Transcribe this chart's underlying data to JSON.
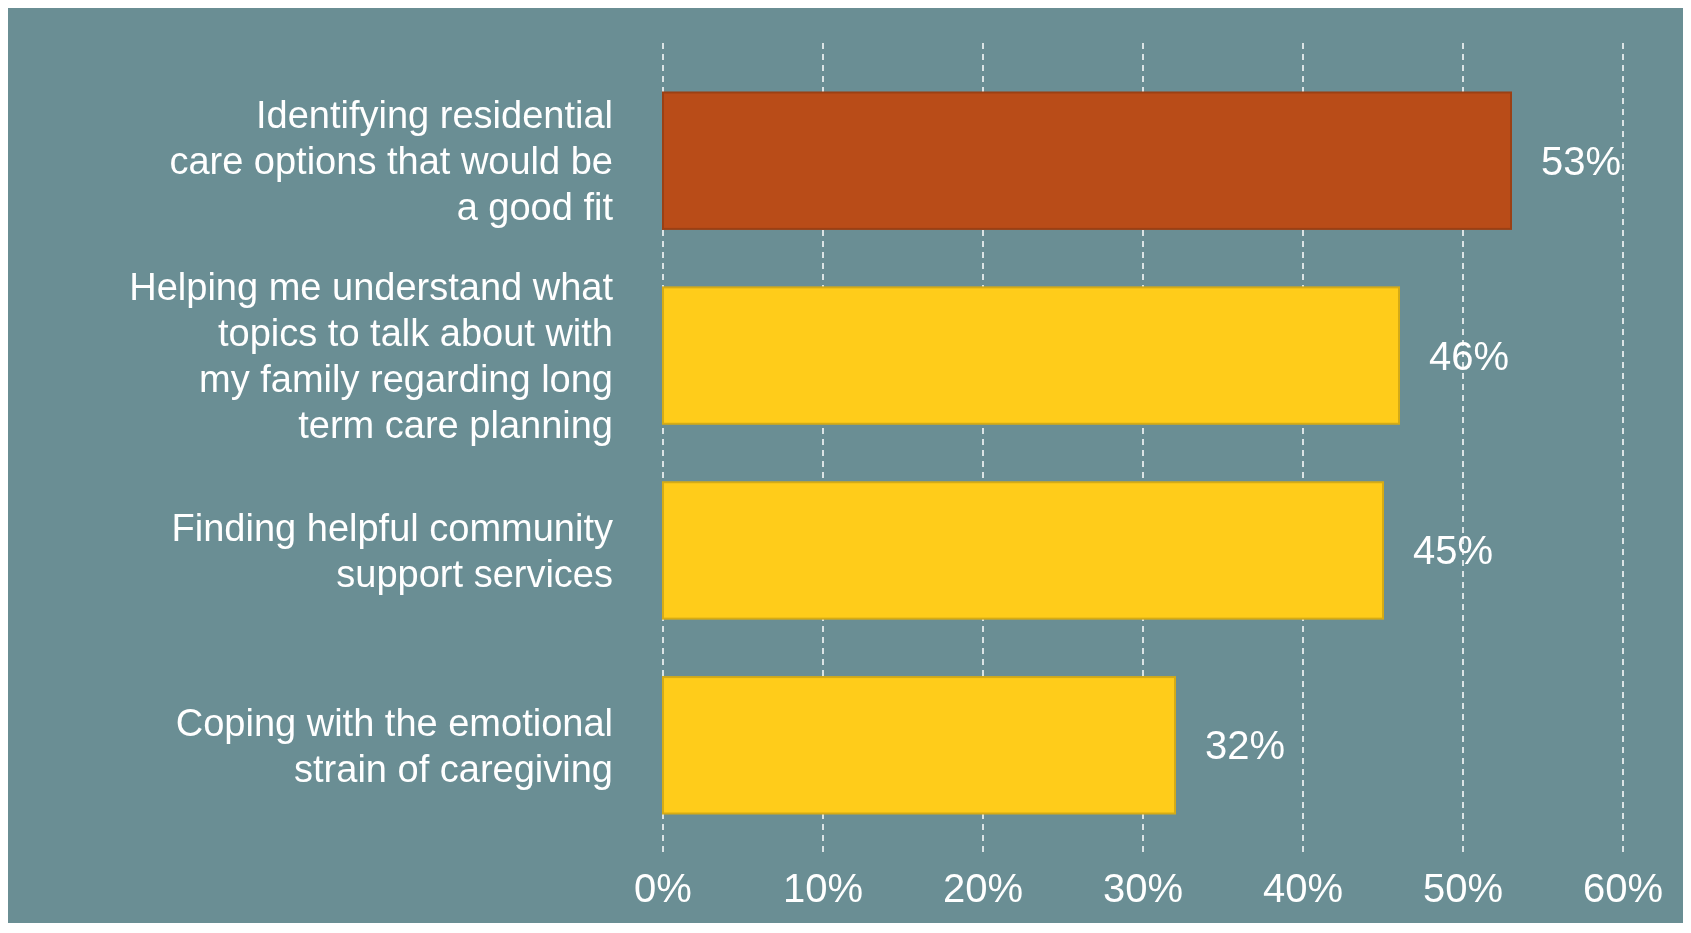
{
  "chart_data": {
    "type": "bar",
    "orientation": "horizontal",
    "categories": [
      "Identifying residential care options that would be a good fit",
      "Helping me understand what topics to talk about with my family regarding long term care planning",
      "Finding helpful community support services",
      "Coping with the emotional strain of caregiving"
    ],
    "values": [
      53,
      46,
      45,
      32
    ],
    "colors": [
      "#b94c18",
      "#ffcc1a",
      "#ffcc1a",
      "#ffcc1a"
    ],
    "value_labels": [
      "53%",
      "46%",
      "45%",
      "32%"
    ],
    "xlim": [
      0,
      60
    ],
    "xticks": [
      {
        "value": 0,
        "label": "0%"
      },
      {
        "value": 10,
        "label": "10%"
      },
      {
        "value": 20,
        "label": "20%"
      },
      {
        "value": 30,
        "label": "30%"
      },
      {
        "value": 40,
        "label": "40%"
      },
      {
        "value": 50,
        "label": "50%"
      },
      {
        "value": 60,
        "label": "60%"
      }
    ],
    "grid": "x"
  }
}
